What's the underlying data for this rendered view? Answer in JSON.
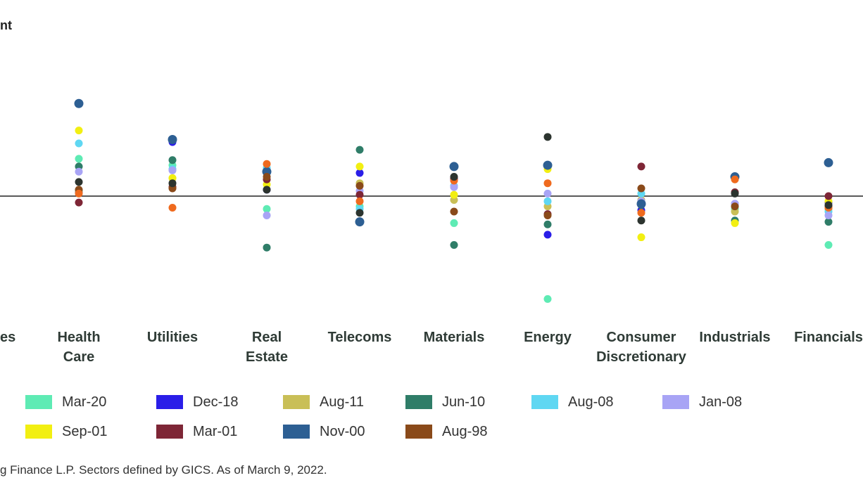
{
  "title_fragment": "nt",
  "source_note": "g Finance L.P. Sectors defined by GICS. As of March 9, 2022.",
  "chart_data": {
    "type": "scatter",
    "title": "",
    "ylabel": "",
    "ylim": [
      -100,
      100
    ],
    "grid": false,
    "legend_position": "bottom",
    "zero_line": true,
    "categories": [
      {
        "label": "es",
        "line2": ""
      },
      {
        "label": "Health",
        "line2": "Care"
      },
      {
        "label": "Utilities",
        "line2": ""
      },
      {
        "label": "Real",
        "line2": "Estate"
      },
      {
        "label": "Telecoms",
        "line2": ""
      },
      {
        "label": "Materials",
        "line2": ""
      },
      {
        "label": "Energy",
        "line2": ""
      },
      {
        "label": "Consumer",
        "line2": "Discretionary"
      },
      {
        "label": "Industrials",
        "line2": ""
      },
      {
        "label": "Financials",
        "line2": ""
      }
    ],
    "series": [
      {
        "name": "Mar-20",
        "color": "#5eebb4",
        "values": [
          null,
          29,
          24,
          -10,
          -8,
          -21,
          -80,
          -4,
          -10,
          -38
        ]
      },
      {
        "name": "Dec-18",
        "color": "#2a1ee8",
        "values": [
          null,
          3,
          42,
          5,
          18,
          13,
          -30,
          -11,
          -6,
          -5
        ]
      },
      {
        "name": "Aug-11",
        "color": "#c9bf57",
        "values": [
          null,
          4,
          14,
          13,
          10,
          -3,
          -8,
          -3,
          -12,
          -10
        ]
      },
      {
        "name": "Jun-10",
        "color": "#2f7d68",
        "values": [
          null,
          23,
          28,
          -40,
          36,
          -38,
          -22,
          -7,
          -19,
          -20
        ]
      },
      {
        "name": "Aug-08",
        "color": "#5fd7f2",
        "values": [
          null,
          41,
          21,
          22,
          -10,
          8,
          -4,
          2,
          -8,
          -12
        ]
      },
      {
        "name": "Jan-08",
        "color": "#a8a4f5",
        "values": [
          null,
          19,
          20,
          -15,
          4,
          7,
          2,
          -4,
          -6,
          -15
        ]
      },
      {
        "name": "Sep-01",
        "color": "#f2ef12",
        "values": [
          null,
          51,
          14,
          9,
          23,
          1,
          21,
          -32,
          -21,
          -4
        ]
      },
      {
        "name": "Mar-01",
        "color": "#7e2636",
        "values": [
          null,
          -5,
          7,
          13,
          1,
          14,
          -14,
          23,
          3,
          0
        ]
      },
      {
        "name": "Nov-00",
        "color": "#2d5f93",
        "values": [
          null,
          72,
          44,
          19,
          -20,
          23,
          24,
          -6,
          15,
          26
        ]
      },
      {
        "name": "Aug-98",
        "color": "#8a4a1a",
        "values": [
          null,
          5,
          6,
          15,
          8,
          -12,
          -15,
          6,
          -8,
          -8
        ]
      },
      {
        "name": "",
        "color": "#ef6a1e",
        "values": [
          null,
          2,
          -9,
          25,
          -4,
          12,
          10,
          -13,
          13,
          -9
        ]
      },
      {
        "name": "",
        "color": "#2c342f",
        "values": [
          null,
          11,
          10,
          5,
          -13,
          15,
          46,
          -19,
          2,
          -7
        ]
      }
    ]
  }
}
